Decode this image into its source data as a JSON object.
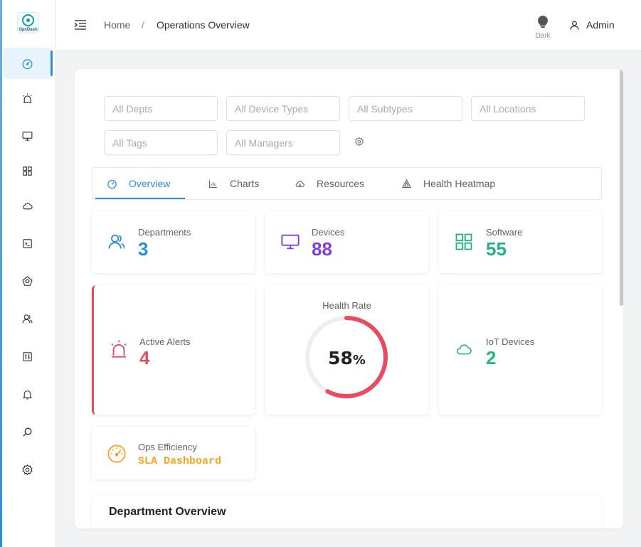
{
  "app": {
    "logo_text": "OpsDash"
  },
  "sidebar": {
    "items": [
      {
        "name": "dashboard",
        "icon": "gauge-icon",
        "active": true
      },
      {
        "name": "alerts",
        "icon": "siren-icon"
      },
      {
        "name": "devices",
        "icon": "monitor-icon"
      },
      {
        "name": "software",
        "icon": "grid-icon"
      },
      {
        "name": "cloud",
        "icon": "cloud-icon"
      },
      {
        "name": "terminal",
        "icon": "terminal-icon"
      },
      {
        "name": "network",
        "icon": "pentagon-icon"
      },
      {
        "name": "users",
        "icon": "users-icon"
      },
      {
        "name": "controls",
        "icon": "sliders-icon"
      },
      {
        "name": "notifications",
        "icon": "bell-icon"
      },
      {
        "name": "search",
        "icon": "search-icon"
      },
      {
        "name": "settings",
        "icon": "gear-icon"
      }
    ]
  },
  "header": {
    "breadcrumb_home": "Home",
    "breadcrumb_sep": "/",
    "breadcrumb_current": "Operations Overview",
    "theme_label": "Dark",
    "user_name": "Admin"
  },
  "filters": {
    "depts": "All Depts",
    "device_types": "All Device Types",
    "subtypes": "All Subtypes",
    "locations": "All Locations",
    "tags": "All Tags",
    "managers": "All Managers"
  },
  "tabs": [
    {
      "label": "Overview",
      "active": true
    },
    {
      "label": "Charts"
    },
    {
      "label": "Resources"
    },
    {
      "label": "Health Heatmap"
    }
  ],
  "stats": {
    "departments": {
      "label": "Departments",
      "value": "3",
      "color": "#2b8fd9"
    },
    "devices": {
      "label": "Devices",
      "value": "88",
      "color": "#7b3fe4"
    },
    "software": {
      "label": "Software",
      "value": "55",
      "color": "#20b486"
    },
    "alerts": {
      "label": "Active Alerts",
      "value": "4",
      "color": "#e04e5d"
    },
    "iot": {
      "label": "IoT Devices",
      "value": "2",
      "color": "#20b486"
    },
    "efficiency": {
      "label": "Ops Efficiency",
      "link": "SLA Dashboard",
      "color": "#f5a623"
    }
  },
  "health": {
    "title": "Health Rate",
    "value": "58",
    "unit": "%",
    "fraction": 0.58,
    "color": "#ea4a63",
    "track_color": "#eeeeee"
  },
  "section": {
    "title": "Department Overview"
  }
}
